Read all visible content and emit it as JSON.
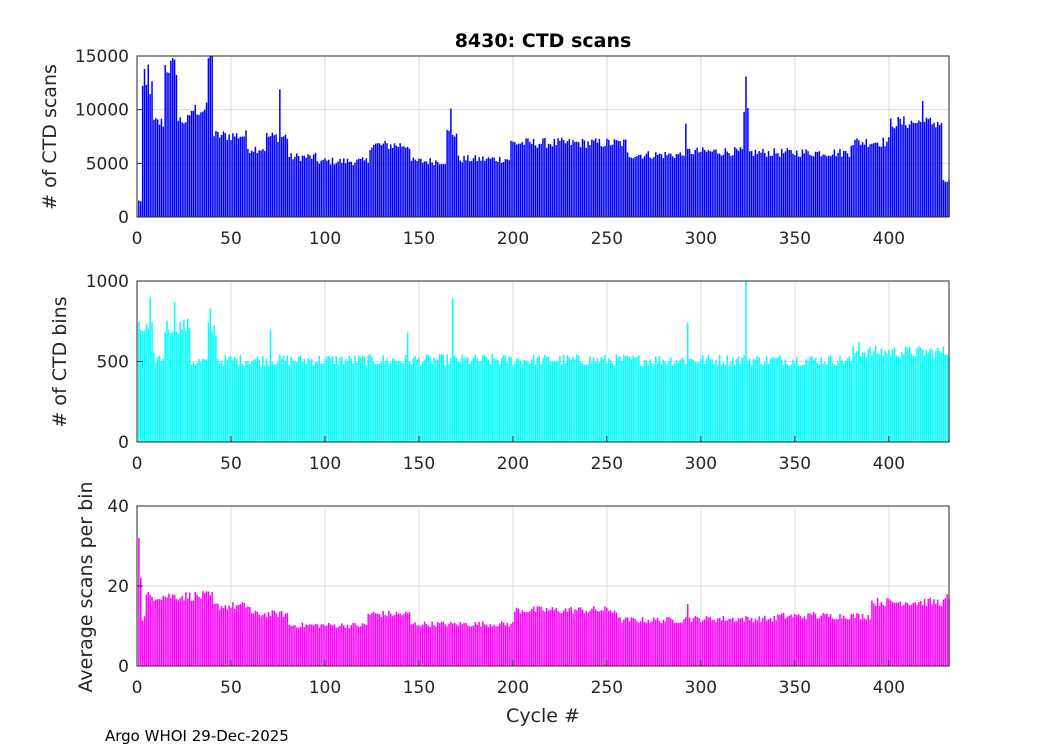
{
  "figure": {
    "title": "8430: CTD scans",
    "footer": "Argo WHOI 29-Dec-2025"
  },
  "chart_data": [
    {
      "type": "bar",
      "name": "scans",
      "color": "#0000ff",
      "title": "8430: CTD scans",
      "xlabel": "",
      "ylabel": "# of CTD scans",
      "xlim": [
        0,
        432
      ],
      "ylim": [
        0,
        15000
      ],
      "xticks": [
        0,
        50,
        100,
        150,
        200,
        250,
        300,
        350,
        400
      ],
      "yticks": [
        0,
        5000,
        10000,
        15000
      ],
      "grid": true,
      "segments": [
        {
          "start": 1,
          "end": 2,
          "value": 1500
        },
        {
          "start": 3,
          "end": 8,
          "value": 12000
        },
        {
          "start": 9,
          "end": 14,
          "value": 8800
        },
        {
          "start": 15,
          "end": 21,
          "value": 14000
        },
        {
          "start": 22,
          "end": 28,
          "value": 9000
        },
        {
          "start": 29,
          "end": 37,
          "value": 10000
        },
        {
          "start": 38,
          "end": 40,
          "value": 14500
        },
        {
          "start": 41,
          "end": 58,
          "value": 7600
        },
        {
          "start": 59,
          "end": 68,
          "value": 6400
        },
        {
          "start": 69,
          "end": 80,
          "value": 7500
        },
        {
          "start": 81,
          "end": 95,
          "value": 5600
        },
        {
          "start": 96,
          "end": 123,
          "value": 5200
        },
        {
          "start": 124,
          "end": 145,
          "value": 6700
        },
        {
          "start": 146,
          "end": 164,
          "value": 5200
        },
        {
          "start": 165,
          "end": 170,
          "value": 7800
        },
        {
          "start": 171,
          "end": 198,
          "value": 5400
        },
        {
          "start": 199,
          "end": 260,
          "value": 6900
        },
        {
          "start": 261,
          "end": 290,
          "value": 5800
        },
        {
          "start": 291,
          "end": 322,
          "value": 6100
        },
        {
          "start": 323,
          "end": 325,
          "value": 9500
        },
        {
          "start": 326,
          "end": 379,
          "value": 6000
        },
        {
          "start": 380,
          "end": 400,
          "value": 7000
        },
        {
          "start": 401,
          "end": 428,
          "value": 8800
        },
        {
          "start": 429,
          "end": 432,
          "value": 3300
        }
      ],
      "spikes": [
        [
          4,
          13800
        ],
        [
          6,
          14200
        ],
        [
          19,
          14800
        ],
        [
          38,
          14800
        ],
        [
          40,
          15000
        ],
        [
          76,
          11900
        ],
        [
          167,
          10100
        ],
        [
          292,
          8700
        ],
        [
          324,
          13100
        ],
        [
          418,
          10800
        ]
      ]
    },
    {
      "type": "bar",
      "name": "bins",
      "color": "#00ffff",
      "title": "",
      "xlabel": "",
      "ylabel": "# of CTD bins",
      "xlim": [
        0,
        432
      ],
      "ylim": [
        0,
        1000
      ],
      "xticks": [
        0,
        50,
        100,
        150,
        200,
        250,
        300,
        350,
        400
      ],
      "yticks": [
        0,
        500,
        1000
      ],
      "grid": true,
      "segments": [
        {
          "start": 1,
          "end": 8,
          "value": 700
        },
        {
          "start": 9,
          "end": 14,
          "value": 520
        },
        {
          "start": 15,
          "end": 28,
          "value": 720
        },
        {
          "start": 29,
          "end": 37,
          "value": 500
        },
        {
          "start": 38,
          "end": 42,
          "value": 700
        },
        {
          "start": 43,
          "end": 80,
          "value": 510
        },
        {
          "start": 81,
          "end": 380,
          "value": 510
        },
        {
          "start": 381,
          "end": 432,
          "value": 560
        }
      ],
      "spikes": [
        [
          7,
          900
        ],
        [
          20,
          870
        ],
        [
          39,
          830
        ],
        [
          71,
          700
        ],
        [
          144,
          680
        ],
        [
          168,
          890
        ],
        [
          293,
          740
        ],
        [
          324,
          1000
        ],
        [
          384,
          620
        ]
      ]
    },
    {
      "type": "bar",
      "name": "avg",
      "color": "#ff00ff",
      "title": "",
      "xlabel": "Cycle #",
      "ylabel": "Average scans per bin",
      "xlim": [
        0,
        432
      ],
      "ylim": [
        0,
        40
      ],
      "xticks": [
        0,
        50,
        100,
        150,
        200,
        250,
        300,
        350,
        400
      ],
      "yticks": [
        0,
        20,
        40
      ],
      "grid": true,
      "segments": [
        {
          "start": 1,
          "end": 1,
          "value": 32
        },
        {
          "start": 2,
          "end": 2,
          "value": 22
        },
        {
          "start": 3,
          "end": 4,
          "value": 12
        },
        {
          "start": 5,
          "end": 40,
          "value": 17.5
        },
        {
          "start": 41,
          "end": 60,
          "value": 15
        },
        {
          "start": 61,
          "end": 80,
          "value": 13
        },
        {
          "start": 81,
          "end": 122,
          "value": 10.2
        },
        {
          "start": 123,
          "end": 145,
          "value": 13
        },
        {
          "start": 146,
          "end": 200,
          "value": 10.5
        },
        {
          "start": 201,
          "end": 255,
          "value": 14
        },
        {
          "start": 256,
          "end": 290,
          "value": 11.5
        },
        {
          "start": 291,
          "end": 340,
          "value": 11.8
        },
        {
          "start": 341,
          "end": 390,
          "value": 12.5
        },
        {
          "start": 391,
          "end": 432,
          "value": 16
        }
      ],
      "spikes": [
        [
          1,
          32
        ],
        [
          2,
          22
        ],
        [
          293,
          15.5
        ],
        [
          360,
          13.5
        ],
        [
          431,
          18
        ]
      ]
    }
  ]
}
